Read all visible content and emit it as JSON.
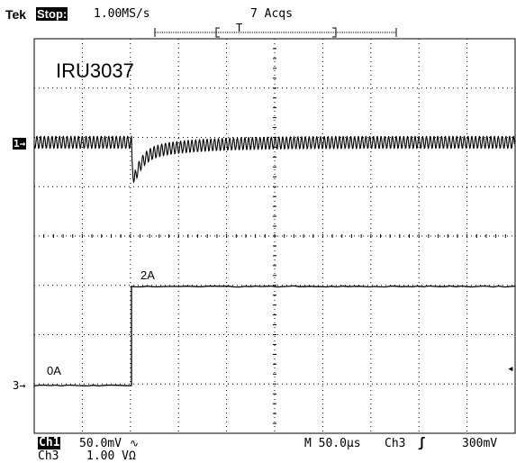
{
  "header": {
    "brand": "Tek",
    "run_state": "Stop:",
    "sample_rate": "1.00MS/s",
    "acquisitions": "7 Acqs"
  },
  "screen": {
    "title": "IRU3037",
    "ch1_marker": "1→",
    "ch3_marker": "3→",
    "trigger_marker": "T",
    "trigger_level_marker": "◂",
    "label_low": "0A",
    "label_high": "2A"
  },
  "readouts": {
    "ch1_name": "Ch1",
    "ch1_scale": "50.0mV",
    "ch1_coupling": "∿",
    "ch3_name": "Ch3",
    "ch3_scale": "1.00 VΩ",
    "timebase": "M 50.0µs",
    "trigger_source": "Ch3",
    "trigger_slope": "ʃ",
    "trigger_level": "300mV"
  },
  "colors": {
    "background": "#ffffff",
    "trace": "#000000",
    "grid": "#000000"
  }
}
